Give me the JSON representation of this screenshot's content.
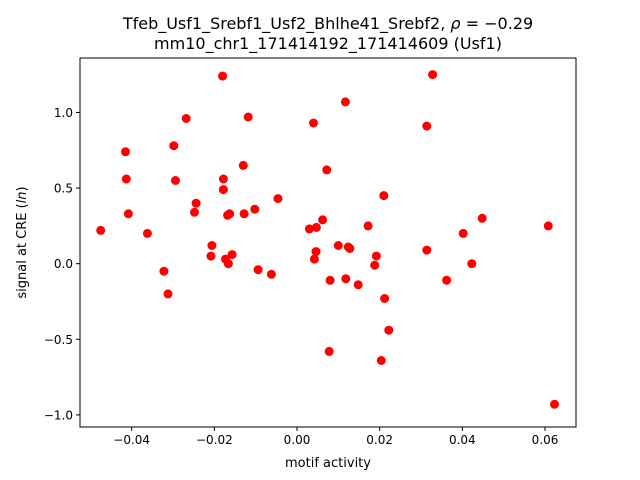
{
  "chart_data": {
    "type": "scatter",
    "title_line1_prefix": "Tfeb_Usf1_Srebf1_Usf2_Bhlhe41_Srebf2, ",
    "title_rho_symbol": "ρ",
    "title_rho_value": " = −0.29",
    "title_line2": "mm10_chr1_171414192_171414609 (Usf1)",
    "xlabel": "motif activity",
    "ylabel_prefix": "signal at CRE (",
    "ylabel_italic": "ln",
    "ylabel_suffix": ")",
    "xlim": [
      -0.0525,
      0.0675
    ],
    "ylim": [
      -1.08,
      1.36
    ],
    "xticks": [
      -0.04,
      -0.02,
      0.0,
      0.02,
      0.04,
      0.06
    ],
    "xtick_labels": [
      "−0.04",
      "−0.02",
      "0.00",
      "0.02",
      "0.04",
      "0.06"
    ],
    "yticks": [
      -1.0,
      -0.5,
      0.0,
      0.5,
      1.0
    ],
    "ytick_labels": [
      "−1.0",
      "−0.5",
      "0.0",
      "0.5",
      "1.0"
    ],
    "grid": false,
    "point_color": "#ff0000",
    "points": [
      [
        -0.0475,
        0.22
      ],
      [
        -0.0415,
        0.74
      ],
      [
        -0.0413,
        0.56
      ],
      [
        -0.0408,
        0.33
      ],
      [
        -0.0362,
        0.2
      ],
      [
        -0.0322,
        -0.05
      ],
      [
        -0.0312,
        -0.2
      ],
      [
        -0.0298,
        0.78
      ],
      [
        -0.0294,
        0.55
      ],
      [
        -0.0268,
        0.96
      ],
      [
        -0.0248,
        0.34
      ],
      [
        -0.0244,
        0.4
      ],
      [
        -0.0208,
        0.05
      ],
      [
        -0.0206,
        0.12
      ],
      [
        -0.018,
        1.24
      ],
      [
        -0.0178,
        0.56
      ],
      [
        -0.0178,
        0.49
      ],
      [
        -0.0173,
        0.03
      ],
      [
        -0.0168,
        0.32
      ],
      [
        -0.0166,
        0.0
      ],
      [
        -0.0163,
        0.33
      ],
      [
        -0.0157,
        0.06
      ],
      [
        -0.013,
        0.65
      ],
      [
        -0.0128,
        0.33
      ],
      [
        -0.0118,
        0.97
      ],
      [
        -0.0102,
        0.36
      ],
      [
        -0.0094,
        -0.04
      ],
      [
        -0.0062,
        -0.07
      ],
      [
        -0.0046,
        0.43
      ],
      [
        0.003,
        0.23
      ],
      [
        0.004,
        0.93
      ],
      [
        0.0042,
        0.03
      ],
      [
        0.0046,
        0.08
      ],
      [
        0.0047,
        0.24
      ],
      [
        0.0062,
        0.29
      ],
      [
        0.0072,
        0.62
      ],
      [
        0.0078,
        -0.58
      ],
      [
        0.008,
        -0.11
      ],
      [
        0.01,
        0.12
      ],
      [
        0.0117,
        1.07
      ],
      [
        0.0118,
        -0.1
      ],
      [
        0.0124,
        0.11
      ],
      [
        0.0128,
        0.1
      ],
      [
        0.0148,
        -0.14
      ],
      [
        0.0172,
        0.25
      ],
      [
        0.0188,
        -0.01
      ],
      [
        0.0192,
        0.05
      ],
      [
        0.0204,
        -0.64
      ],
      [
        0.021,
        0.45
      ],
      [
        0.0212,
        -0.23
      ],
      [
        0.0222,
        -0.44
      ],
      [
        0.0314,
        0.09
      ],
      [
        0.0314,
        0.91
      ],
      [
        0.0328,
        1.25
      ],
      [
        0.0362,
        -0.11
      ],
      [
        0.0402,
        0.2
      ],
      [
        0.0423,
        0.0
      ],
      [
        0.0448,
        0.3
      ],
      [
        0.0608,
        0.25
      ],
      [
        0.0623,
        -0.93
      ]
    ]
  }
}
